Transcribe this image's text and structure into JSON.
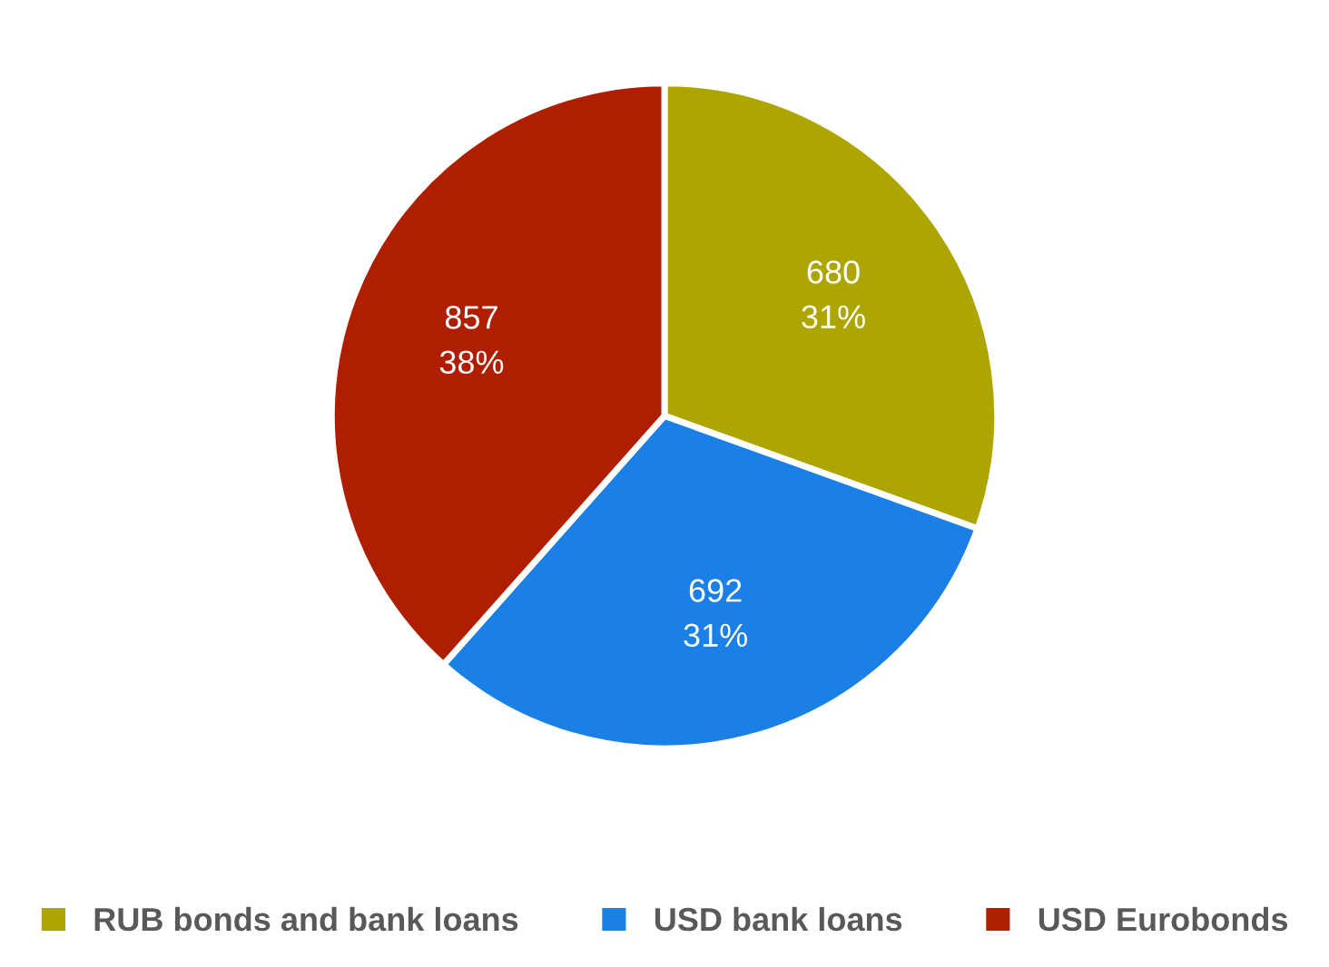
{
  "chart_data": {
    "type": "pie",
    "categories": [
      "RUB bonds and bank loans",
      "USD bank loans",
      "USD Eurobonds"
    ],
    "values": [
      680,
      692,
      857
    ],
    "colors": [
      "#aea600",
      "#1a80e6",
      "#b01e00"
    ],
    "value_labels": [
      "680\n31%",
      "692\n31%",
      "857\n38%"
    ],
    "legend": "bottom"
  }
}
